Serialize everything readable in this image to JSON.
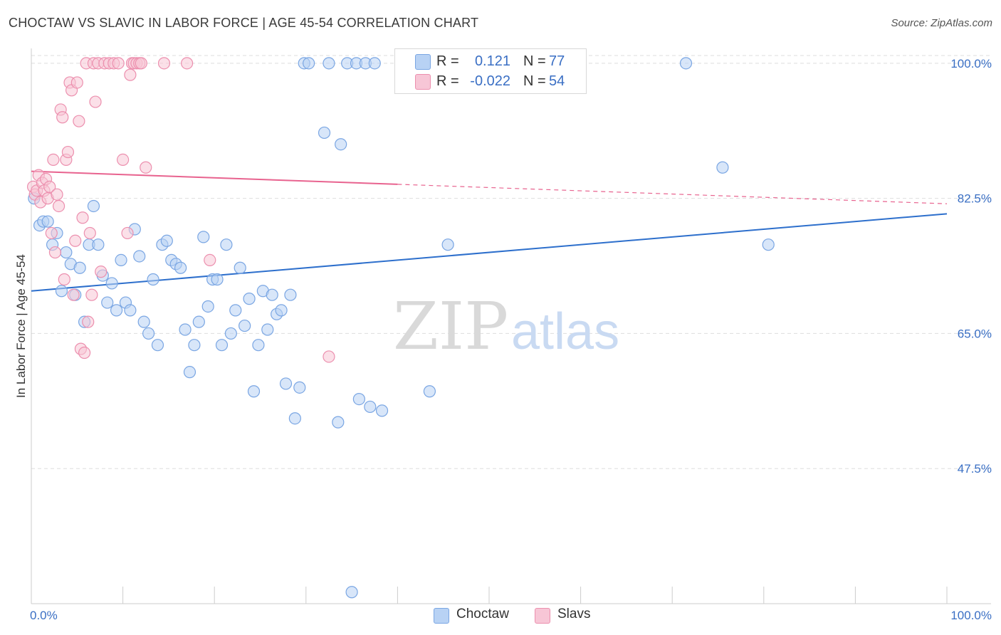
{
  "title": "CHOCTAW VS SLAVIC IN LABOR FORCE | AGE 45-54 CORRELATION CHART",
  "source": "Source: ZipAtlas.com",
  "watermark": {
    "zip": "ZIP",
    "atlas": "atlas"
  },
  "colors": {
    "choctaw_fill": "#b8d2f4",
    "choctaw_stroke": "#7aa6e3",
    "choctaw_line": "#2d6fcc",
    "slavs_fill": "#f7c6d6",
    "slavs_stroke": "#ec8fae",
    "slavs_line": "#e8638f",
    "tick_label": "#3a6fc4",
    "grid": "#dddddd"
  },
  "stats": {
    "choctaw": {
      "r_label": "R =",
      "r_value": "0.121",
      "n_label": "N =",
      "n_value": "77"
    },
    "slavs": {
      "r_label": "R =",
      "r_value": "-0.022",
      "n_label": "N =",
      "n_value": "54"
    }
  },
  "legend": {
    "choctaw": "Choctaw",
    "slavs": "Slavs"
  },
  "chart_data": {
    "type": "scatter",
    "title": "CHOCTAW VS SLAVIC IN LABOR FORCE | AGE 45-54 CORRELATION CHART",
    "xlabel": "",
    "ylabel": "In Labor Force | Age 45-54",
    "xlim": [
      0,
      100
    ],
    "ylim": [
      30,
      101
    ],
    "x_tick_labels": [
      "0.0%",
      "100.0%"
    ],
    "y_ticks": [
      47.5,
      65.0,
      82.5,
      100.0
    ],
    "y_tick_labels": [
      "47.5%",
      "65.0%",
      "82.5%",
      "100.0%"
    ],
    "grid": true,
    "series": [
      {
        "name": "Choctaw",
        "r": 0.121,
        "n": 77,
        "trend": {
          "x0": 0,
          "y0": 70.5,
          "x1": 100,
          "y1": 80.5,
          "solid_to": 100
        },
        "points": [
          [
            0.3,
            82.5
          ],
          [
            0.9,
            79
          ],
          [
            1.3,
            79.5
          ],
          [
            1.8,
            79.5
          ],
          [
            2.3,
            76.5
          ],
          [
            2.8,
            78
          ],
          [
            3.3,
            70.5
          ],
          [
            3.8,
            75.5
          ],
          [
            4.3,
            74
          ],
          [
            4.8,
            70
          ],
          [
            5.3,
            73.5
          ],
          [
            5.8,
            66.5
          ],
          [
            6.3,
            76.5
          ],
          [
            6.8,
            81.5
          ],
          [
            7.3,
            76.5
          ],
          [
            7.8,
            72.5
          ],
          [
            8.3,
            69
          ],
          [
            8.8,
            71.5
          ],
          [
            9.3,
            68
          ],
          [
            9.8,
            74.5
          ],
          [
            10.3,
            69
          ],
          [
            10.8,
            68
          ],
          [
            11.3,
            78.5
          ],
          [
            11.8,
            75
          ],
          [
            12.3,
            66.5
          ],
          [
            12.8,
            65
          ],
          [
            13.3,
            72
          ],
          [
            13.8,
            63.5
          ],
          [
            14.3,
            76.5
          ],
          [
            14.8,
            77
          ],
          [
            15.3,
            74.5
          ],
          [
            15.8,
            74
          ],
          [
            16.3,
            73.5
          ],
          [
            16.8,
            65.5
          ],
          [
            17.3,
            60
          ],
          [
            17.8,
            63.5
          ],
          [
            18.3,
            66.5
          ],
          [
            18.8,
            77.5
          ],
          [
            19.3,
            68.5
          ],
          [
            19.8,
            72
          ],
          [
            20.3,
            72
          ],
          [
            20.8,
            63.5
          ],
          [
            21.3,
            76.5
          ],
          [
            21.8,
            65
          ],
          [
            22.3,
            68
          ],
          [
            22.8,
            73.5
          ],
          [
            23.3,
            66
          ],
          [
            23.8,
            69.5
          ],
          [
            24.3,
            57.5
          ],
          [
            24.8,
            63.5
          ],
          [
            25.3,
            70.5
          ],
          [
            25.8,
            65.5
          ],
          [
            26.3,
            70
          ],
          [
            26.8,
            67.5
          ],
          [
            27.3,
            68
          ],
          [
            27.8,
            58.5
          ],
          [
            28.3,
            70
          ],
          [
            28.8,
            54
          ],
          [
            29.3,
            58
          ],
          [
            29.8,
            100
          ],
          [
            30.3,
            100
          ],
          [
            32,
            91
          ],
          [
            32.5,
            100
          ],
          [
            33.5,
            53.5
          ],
          [
            33.8,
            89.5
          ],
          [
            34.5,
            100
          ],
          [
            35.5,
            100
          ],
          [
            35,
            31.5
          ],
          [
            35.8,
            56.5
          ],
          [
            36.5,
            100
          ],
          [
            37,
            55.5
          ],
          [
            37.5,
            100
          ],
          [
            38.3,
            55
          ],
          [
            43.5,
            57.5
          ],
          [
            45.5,
            76.5
          ],
          [
            71.5,
            100
          ],
          [
            75.5,
            86.5
          ],
          [
            80.5,
            76.5
          ]
        ]
      },
      {
        "name": "Slavs",
        "r": -0.022,
        "n": 54,
        "trend": {
          "x0": 0,
          "y0": 86,
          "x1": 100,
          "y1": 81.8,
          "solid_to": 40
        },
        "points": [
          [
            0.2,
            84
          ],
          [
            0.4,
            83
          ],
          [
            0.6,
            83.5
          ],
          [
            0.8,
            85.5
          ],
          [
            1.0,
            82
          ],
          [
            1.2,
            84.5
          ],
          [
            1.4,
            83.5
          ],
          [
            1.6,
            85
          ],
          [
            1.8,
            82.5
          ],
          [
            2.0,
            84
          ],
          [
            2.2,
            78
          ],
          [
            2.4,
            87.5
          ],
          [
            2.6,
            75.5
          ],
          [
            2.8,
            83
          ],
          [
            3.0,
            81.5
          ],
          [
            3.2,
            94
          ],
          [
            3.4,
            93
          ],
          [
            3.6,
            72
          ],
          [
            3.8,
            87.5
          ],
          [
            4.0,
            88.5
          ],
          [
            4.2,
            97.5
          ],
          [
            4.4,
            96.5
          ],
          [
            4.6,
            70
          ],
          [
            4.8,
            77
          ],
          [
            5.0,
            97.5
          ],
          [
            5.2,
            92.5
          ],
          [
            5.4,
            63
          ],
          [
            5.6,
            80
          ],
          [
            5.8,
            62.5
          ],
          [
            6.0,
            100
          ],
          [
            6.2,
            66.5
          ],
          [
            6.4,
            78
          ],
          [
            6.6,
            70
          ],
          [
            6.8,
            100
          ],
          [
            7.0,
            95
          ],
          [
            7.3,
            100
          ],
          [
            7.6,
            73
          ],
          [
            8.0,
            100
          ],
          [
            8.5,
            100
          ],
          [
            9.0,
            100
          ],
          [
            9.5,
            100
          ],
          [
            10.0,
            87.5
          ],
          [
            10.5,
            78
          ],
          [
            10.8,
            98.5
          ],
          [
            11.0,
            100
          ],
          [
            11.2,
            100
          ],
          [
            11.5,
            100
          ],
          [
            11.8,
            100
          ],
          [
            12.0,
            100
          ],
          [
            12.5,
            86.5
          ],
          [
            14.5,
            100
          ],
          [
            17.0,
            100
          ],
          [
            19.5,
            74.5
          ],
          [
            32.5,
            62
          ]
        ]
      }
    ]
  }
}
